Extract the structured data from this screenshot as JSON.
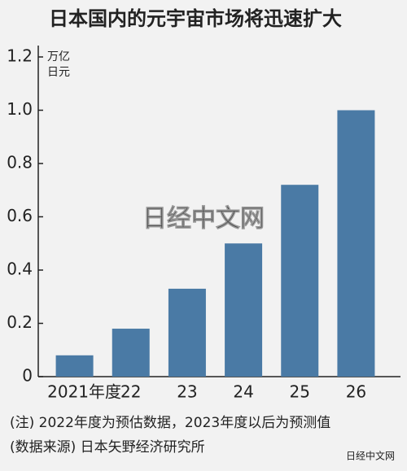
{
  "chart_data": {
    "type": "bar",
    "title": "日本国内的元宇宙市场将迅速扩大",
    "y_label": [
      "万亿",
      "日元"
    ],
    "categories": [
      "2021年度",
      "22",
      "23",
      "24",
      "25",
      "26"
    ],
    "values": [
      0.08,
      0.18,
      0.33,
      0.5,
      0.72,
      1.0
    ],
    "color": "#4a7aa5",
    "ylim": [
      0,
      1.2
    ],
    "yticks": [
      0,
      0.2,
      0.4,
      0.6,
      0.8,
      {
        "value": 1,
        "label": "1.0"
      },
      1.2
    ],
    "grid": false,
    "notes": [
      "(注) 2022年度为预估数据，2023年度以后为预测值",
      "(数据来源) 日本矢野经济研究所"
    ],
    "watermark": "日经中文网",
    "logo": "日经中文网"
  }
}
